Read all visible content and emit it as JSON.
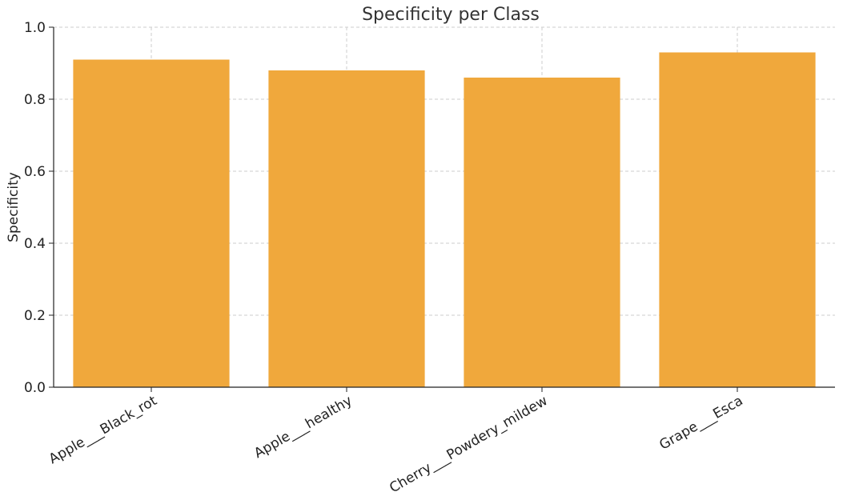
{
  "chart_data": {
    "type": "bar",
    "title": "Specificity per Class",
    "xlabel": "",
    "ylabel": "Specificity",
    "categories": [
      "Apple___Black_rot",
      "Apple___healthy",
      "Cherry___Powdery_mildew",
      "Grape___Esca"
    ],
    "values": [
      0.91,
      0.88,
      0.86,
      0.93
    ],
    "ylim": [
      0,
      1.0
    ],
    "yticks": [
      "0.0",
      "0.2",
      "0.4",
      "0.6",
      "0.8",
      "1.0"
    ],
    "bar_color": "#f0a83c",
    "grid": true,
    "xtick_rotation_deg": -30
  }
}
